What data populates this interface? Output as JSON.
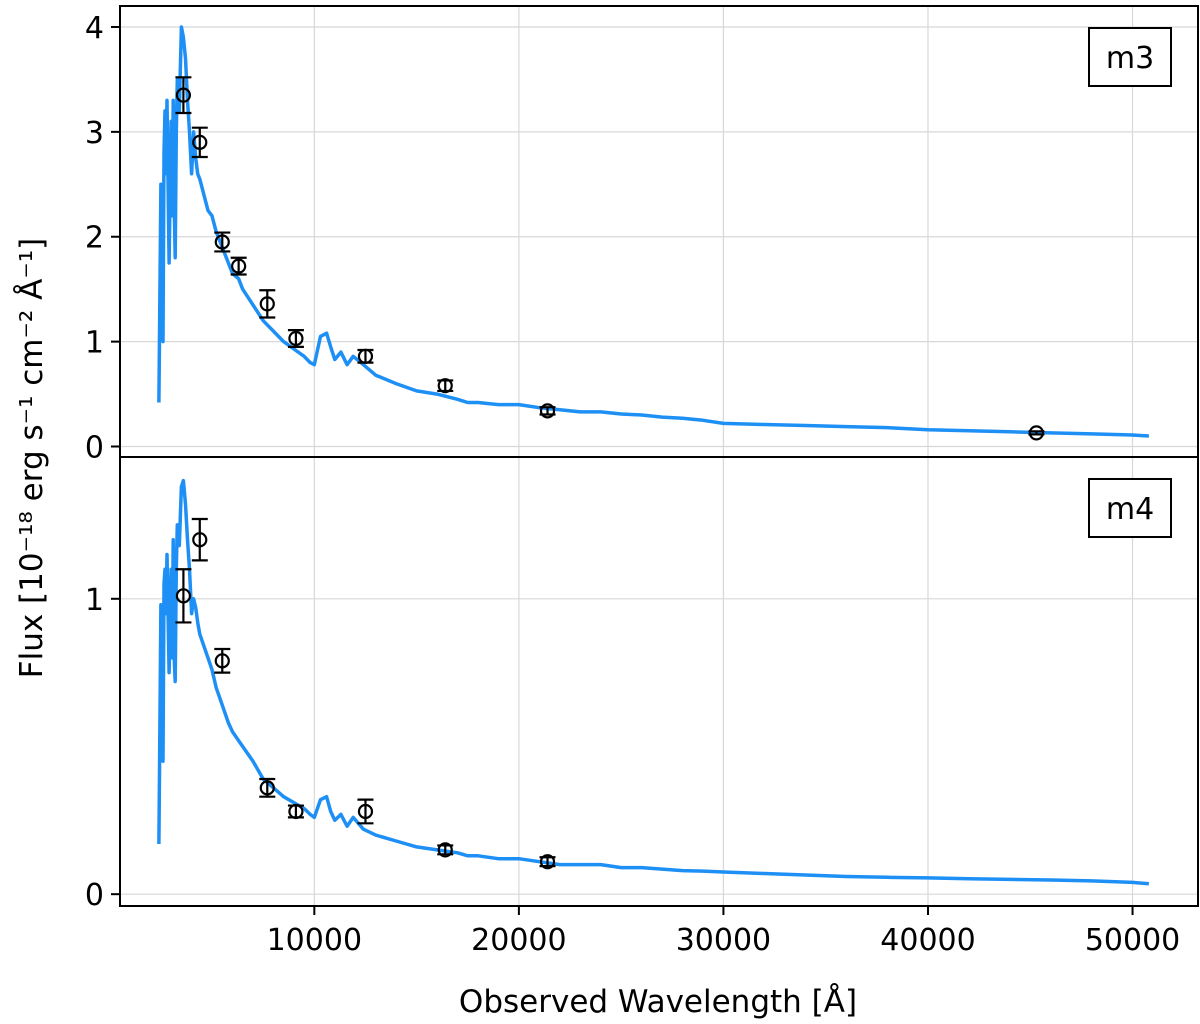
{
  "chart_data": {
    "type": "line",
    "xlabel": "Observed Wavelength [Å]",
    "ylabel": "Flux [10⁻¹⁸ erg s⁻¹ cm⁻² Å⁻¹]",
    "xlim": [
      500,
      53200
    ],
    "x_ticks": [
      10000,
      20000,
      30000,
      40000,
      50000
    ],
    "x_tick_labels": [
      "10000",
      "20000",
      "30000",
      "40000",
      "50000"
    ],
    "grid": true,
    "model_color": "#1E90F5",
    "point_color": "#000000",
    "panels": [
      {
        "label": "m3",
        "ylim": [
          -0.1,
          4.2
        ],
        "y_ticks": [
          0,
          1,
          2,
          3,
          4
        ],
        "y_tick_labels": [
          "0",
          "1",
          "2",
          "3",
          "4"
        ],
        "model": {
          "x": [
            2400,
            2500,
            2600,
            2650,
            2700,
            2750,
            2800,
            2900,
            3000,
            3050,
            3100,
            3150,
            3200,
            3250,
            3300,
            3400,
            3500,
            3600,
            3700,
            3800,
            3900,
            4000,
            4100,
            4200,
            4300,
            4400,
            4600,
            4800,
            5000,
            5200,
            5400,
            5600,
            5800,
            6000,
            6300,
            6500,
            7000,
            7500,
            8000,
            8500,
            9000,
            9500,
            9800,
            10000,
            10300,
            10600,
            10800,
            11000,
            11300,
            11600,
            11900,
            12400,
            13000,
            14000,
            15000,
            16000,
            17000,
            17500,
            18000,
            19000,
            20000,
            21000,
            22000,
            23000,
            24000,
            25000,
            26000,
            27000,
            28000,
            29000,
            30000,
            32000,
            34000,
            36000,
            38000,
            40000,
            42000,
            44000,
            46000,
            48000,
            50000,
            50800
          ],
          "y": [
            0.42,
            2.5,
            1.0,
            2.8,
            3.2,
            2.6,
            3.3,
            1.75,
            3.1,
            2.2,
            3.3,
            2.3,
            1.8,
            3.0,
            3.5,
            3.2,
            4.0,
            3.9,
            3.7,
            3.3,
            3.0,
            2.6,
            3.0,
            2.75,
            2.6,
            2.55,
            2.4,
            2.25,
            2.2,
            2.05,
            1.95,
            1.85,
            1.75,
            1.65,
            1.6,
            1.5,
            1.35,
            1.2,
            1.1,
            1.0,
            0.93,
            0.86,
            0.8,
            0.78,
            1.05,
            1.08,
            0.95,
            0.83,
            0.9,
            0.78,
            0.86,
            0.78,
            0.68,
            0.6,
            0.53,
            0.5,
            0.45,
            0.42,
            0.42,
            0.4,
            0.4,
            0.37,
            0.35,
            0.33,
            0.33,
            0.31,
            0.3,
            0.28,
            0.27,
            0.25,
            0.22,
            0.21,
            0.2,
            0.19,
            0.18,
            0.16,
            0.15,
            0.14,
            0.13,
            0.12,
            0.11,
            0.1
          ]
        },
        "points": {
          "x": [
            3600,
            4400,
            5500,
            6300,
            7700,
            9100,
            12500,
            16400,
            21400,
            45300
          ],
          "y": [
            3.35,
            2.9,
            1.95,
            1.72,
            1.36,
            1.03,
            0.86,
            0.58,
            0.34,
            0.13
          ],
          "err": [
            0.17,
            0.14,
            0.09,
            0.08,
            0.13,
            0.08,
            0.06,
            0.05,
            0.035,
            0.015
          ]
        }
      },
      {
        "label": "m4",
        "ylim": [
          -0.04,
          1.48
        ],
        "y_ticks": [
          0,
          1
        ],
        "y_tick_labels": [
          "0",
          "1"
        ],
        "model": {
          "x": [
            2400,
            2500,
            2600,
            2650,
            2700,
            2750,
            2800,
            2900,
            3000,
            3050,
            3100,
            3150,
            3200,
            3250,
            3300,
            3400,
            3500,
            3600,
            3700,
            3800,
            3900,
            4000,
            4100,
            4200,
            4300,
            4400,
            4600,
            4800,
            5000,
            5200,
            5400,
            5600,
            5800,
            6000,
            6300,
            6500,
            7000,
            7500,
            8000,
            8500,
            9000,
            9500,
            9800,
            10000,
            10300,
            10600,
            10800,
            11000,
            11300,
            11600,
            11900,
            12400,
            13000,
            14000,
            15000,
            16000,
            17000,
            17500,
            18000,
            19000,
            20000,
            21000,
            22000,
            23000,
            24000,
            25000,
            26000,
            27000,
            28000,
            29000,
            30000,
            32000,
            34000,
            36000,
            38000,
            40000,
            42000,
            44000,
            46000,
            48000,
            50000,
            50800
          ],
          "y": [
            0.17,
            0.98,
            0.45,
            1.05,
            1.1,
            0.95,
            1.15,
            0.75,
            1.1,
            0.8,
            1.2,
            0.8,
            0.72,
            1.1,
            1.25,
            1.18,
            1.38,
            1.4,
            1.32,
            1.2,
            1.1,
            0.95,
            1.0,
            0.97,
            0.92,
            0.88,
            0.84,
            0.8,
            0.76,
            0.7,
            0.66,
            0.62,
            0.58,
            0.55,
            0.52,
            0.5,
            0.45,
            0.39,
            0.36,
            0.33,
            0.31,
            0.29,
            0.27,
            0.26,
            0.32,
            0.33,
            0.28,
            0.25,
            0.27,
            0.23,
            0.26,
            0.22,
            0.2,
            0.18,
            0.16,
            0.15,
            0.14,
            0.13,
            0.13,
            0.12,
            0.12,
            0.11,
            0.1,
            0.1,
            0.1,
            0.09,
            0.09,
            0.085,
            0.08,
            0.078,
            0.075,
            0.07,
            0.065,
            0.06,
            0.057,
            0.055,
            0.052,
            0.05,
            0.048,
            0.045,
            0.04,
            0.035
          ]
        },
        "points": {
          "x": [
            3600,
            4400,
            5500,
            7700,
            9100,
            12500,
            16400,
            21400
          ],
          "y": [
            1.01,
            1.2,
            0.79,
            0.36,
            0.28,
            0.28,
            0.15,
            0.11
          ],
          "err": [
            0.09,
            0.07,
            0.04,
            0.03,
            0.02,
            0.04,
            0.015,
            0.015
          ]
        }
      }
    ]
  }
}
